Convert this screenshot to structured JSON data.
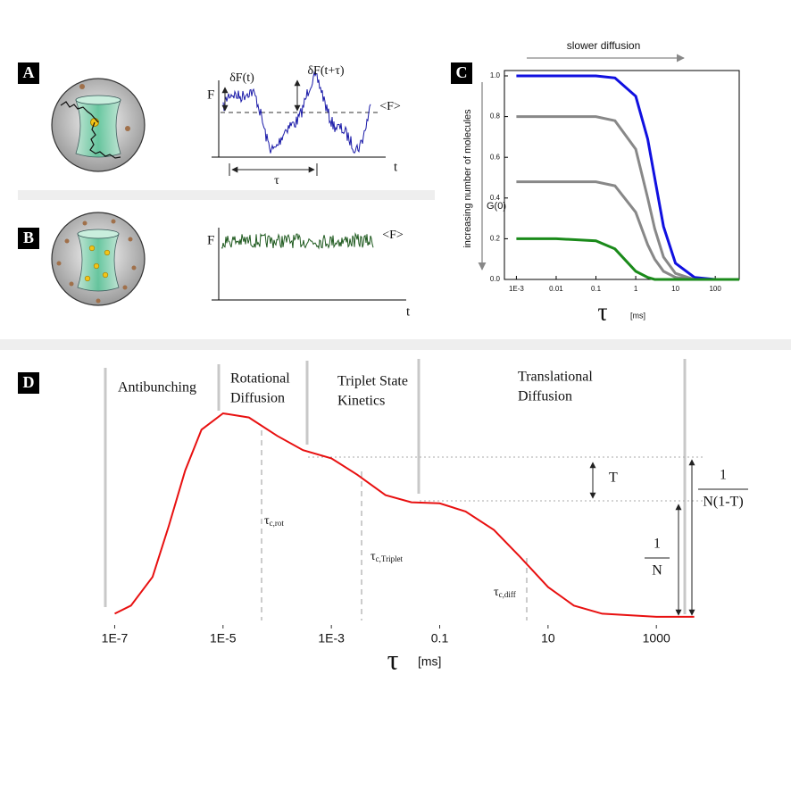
{
  "panels": {
    "A": {
      "label": "A",
      "F": "F",
      "dF_t": "δF(t)",
      "dF_ttau": "δF(t+τ)",
      "mean": "<F>",
      "t": "t",
      "tau": "τ"
    },
    "B": {
      "label": "B",
      "F": "F",
      "mean": "<F>",
      "t": "t"
    }
  },
  "chart_data": [
    {
      "type": "line",
      "label": "C",
      "y_label": "G(0)",
      "side_label": "increasing number of molecules",
      "top_label": "slower diffusion",
      "x_label": "τ",
      "x_unit": "[ms]",
      "log_x": true,
      "x": [
        0.001,
        0.01,
        0.1,
        0.3,
        1,
        2,
        3,
        5,
        10,
        30,
        100,
        400
      ],
      "series": [
        {
          "color": "#1010e0",
          "values": [
            1.0,
            1.0,
            1.0,
            0.99,
            0.9,
            0.69,
            0.5,
            0.26,
            0.08,
            0.01,
            0.0,
            0.0
          ]
        },
        {
          "color": "#888888",
          "values": [
            0.8,
            0.8,
            0.8,
            0.78,
            0.64,
            0.4,
            0.25,
            0.11,
            0.03,
            0.0,
            0.0,
            0.0
          ]
        },
        {
          "color": "#888888",
          "values": [
            0.48,
            0.48,
            0.48,
            0.46,
            0.33,
            0.17,
            0.1,
            0.04,
            0.01,
            0.0,
            0.0,
            0.0
          ]
        },
        {
          "color": "#1a8a1a",
          "values": [
            0.2,
            0.2,
            0.19,
            0.15,
            0.04,
            0.01,
            0.0,
            0.0,
            0.0,
            0.0,
            0.0,
            0.0
          ]
        }
      ],
      "xlim": [
        0.0005,
        400
      ],
      "ylim": [
        0,
        1
      ],
      "xticks": [
        {
          "value": 0.001,
          "label": "1E-3"
        },
        0.01,
        0.1,
        1,
        10,
        100
      ],
      "yticks": [
        {
          "value": 0,
          "label": "0.0"
        },
        0.2,
        0.4,
        0.6,
        0.8,
        {
          "value": 1,
          "label": "1.0"
        }
      ]
    },
    {
      "type": "line",
      "label": "D",
      "x_label": "τ",
      "x_unit": "[ms]",
      "log_x": true,
      "color": "#e81010",
      "regions": [
        [
          "Antibunching"
        ],
        [
          "Rotational",
          "Diffusion"
        ],
        [
          "Triplet State",
          "Kinetics"
        ],
        [
          "Translational",
          "Diffusion"
        ]
      ],
      "tau_labels": [
        {
          "main": "τ",
          "sub": "c,rot"
        },
        {
          "main": "τ",
          "sub": "c,Triplet"
        },
        {
          "main": "τ",
          "sub": "c,diff"
        }
      ],
      "T": "T",
      "inv_N": [
        "1",
        "N"
      ],
      "inv_NT": [
        "1",
        "N(1-T)"
      ],
      "x": [
        1e-07,
        2e-07,
        5e-07,
        1e-06,
        2e-06,
        4e-06,
        1e-05,
        3e-05,
        0.0001,
        0.0003,
        0.001,
        0.003,
        0.01,
        0.03,
        0.1,
        0.3,
        1,
        3,
        10,
        30,
        100,
        1000,
        5000
      ],
      "values": [
        0.02,
        0.06,
        0.2,
        0.45,
        0.72,
        0.92,
        1.0,
        0.98,
        0.89,
        0.82,
        0.78,
        0.7,
        0.6,
        0.565,
        0.56,
        0.52,
        0.43,
        0.3,
        0.15,
        0.06,
        0.02,
        0.005,
        0.005
      ],
      "xlim": [
        6e-08,
        8000
      ],
      "ylim": [
        0,
        1
      ],
      "xticks": [
        {
          "value": 1e-07,
          "label": "1E-7"
        },
        {
          "value": 1e-05,
          "label": "1E-5"
        },
        {
          "value": 0.001,
          "label": "1E-3"
        },
        0.1,
        10,
        1000
      ]
    }
  ]
}
